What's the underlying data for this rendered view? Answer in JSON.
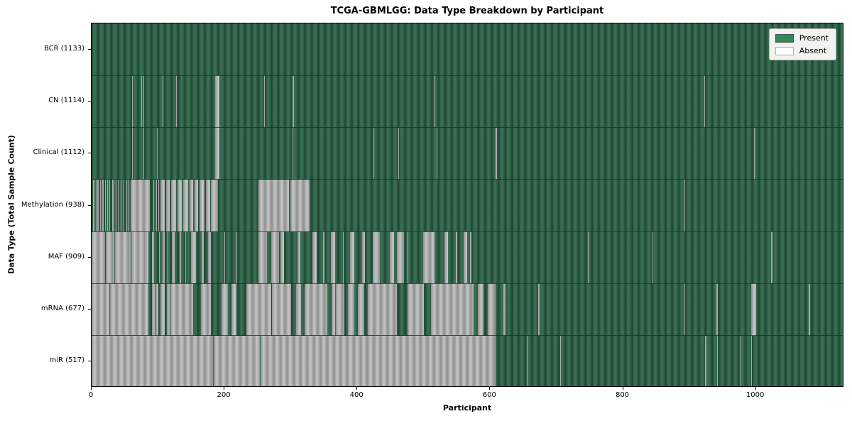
{
  "figure": {
    "title": "TCGA-GBMLGG: Data Type Breakdown by Participant",
    "xlabel": "Participant",
    "ylabel": "Data Type (Total Sample Count)"
  },
  "legend": {
    "items": [
      {
        "label": "Present",
        "color": "#2e8b57",
        "border": "#4d4d4d"
      },
      {
        "label": "Absent",
        "color": "#ffffff",
        "border": "#b0b0b0"
      }
    ],
    "background": "#f2f2ef",
    "border_color": "#b5b5b5"
  },
  "colors": {
    "present_fill": "#2e8b57",
    "absent_fill": "#ffffff",
    "plot_green_dark": "#1f4531",
    "plot_green_base": "#2f6147",
    "plot_green_light": "#3d7257",
    "plot_gray_dark": "#8f8f8f",
    "plot_gray_base": "#a9a9a9",
    "plot_gray_light": "#c6c6c6",
    "row_separator": "#16301f",
    "spine": "#000000"
  },
  "chart_data": {
    "type": "heatmap",
    "title": "TCGA-GBMLGG: Data Type Breakdown by Participant",
    "xlabel": "Participant",
    "ylabel": "Data Type (Total Sample Count)",
    "x_ticks": [
      0,
      200,
      400,
      600,
      800,
      1000
    ],
    "x_max": 1133,
    "legend_entries": [
      "Present",
      "Absent"
    ],
    "cell_states": {
      "present": "seagreen",
      "absent": "white"
    },
    "rows": [
      {
        "label": "BCR (1133)",
        "data_type": "BCR",
        "present_count": 1133,
        "absent_segments": []
      },
      {
        "label": "CN (1114)",
        "data_type": "CN",
        "present_count": 1114,
        "absent_segments": [
          [
            61,
            62
          ],
          [
            75,
            76
          ],
          [
            78,
            79
          ],
          [
            107,
            108
          ],
          [
            127,
            128
          ],
          [
            186,
            192
          ],
          [
            260,
            261
          ],
          [
            303,
            305
          ],
          [
            516,
            517
          ],
          [
            922,
            924
          ]
        ]
      },
      {
        "label": "Clinical (1112)",
        "data_type": "Clinical",
        "present_count": 1112,
        "absent_segments": [
          [
            61,
            62
          ],
          [
            78,
            79
          ],
          [
            98,
            99
          ],
          [
            186,
            192
          ],
          [
            303,
            304
          ],
          [
            424,
            425
          ],
          [
            462,
            463
          ],
          [
            519,
            520
          ],
          [
            608,
            610
          ],
          [
            997,
            998
          ]
        ]
      },
      {
        "label": "Methylation (938)",
        "data_type": "Methylation",
        "present_count": 938,
        "absent_segments": [
          [
            2,
            4
          ],
          [
            6,
            7
          ],
          [
            9,
            11
          ],
          [
            13,
            14
          ],
          [
            16,
            18
          ],
          [
            20,
            21
          ],
          [
            24,
            25
          ],
          [
            27,
            28
          ],
          [
            31,
            33
          ],
          [
            36,
            37
          ],
          [
            40,
            41
          ],
          [
            44,
            45
          ],
          [
            48,
            49
          ],
          [
            52,
            53
          ],
          [
            55,
            56
          ],
          [
            59,
            88
          ],
          [
            93,
            94
          ],
          [
            97,
            98
          ],
          [
            101,
            102
          ],
          [
            104,
            110
          ],
          [
            112,
            118
          ],
          [
            120,
            127
          ],
          [
            129,
            136
          ],
          [
            138,
            145
          ],
          [
            147,
            153
          ],
          [
            155,
            160
          ],
          [
            162,
            170
          ],
          [
            172,
            178
          ],
          [
            180,
            190
          ],
          [
            251,
            297
          ],
          [
            299,
            328
          ],
          [
            892,
            894
          ]
        ]
      },
      {
        "label": "MAF (909)",
        "data_type": "MAF",
        "present_count": 909,
        "absent_segments": [
          [
            0,
            20
          ],
          [
            21,
            34
          ],
          [
            35,
            59
          ],
          [
            60,
            85
          ],
          [
            91,
            94
          ],
          [
            102,
            103
          ],
          [
            107,
            110
          ],
          [
            114,
            115
          ],
          [
            121,
            125
          ],
          [
            132,
            135
          ],
          [
            141,
            142
          ],
          [
            150,
            157
          ],
          [
            166,
            169
          ],
          [
            175,
            180
          ],
          [
            200,
            201
          ],
          [
            218,
            219
          ],
          [
            251,
            264
          ],
          [
            270,
            282
          ],
          [
            284,
            290
          ],
          [
            310,
            314
          ],
          [
            332,
            339
          ],
          [
            348,
            351
          ],
          [
            360,
            367
          ],
          [
            378,
            379
          ],
          [
            389,
            396
          ],
          [
            407,
            411
          ],
          [
            423,
            434
          ],
          [
            449,
            455
          ],
          [
            460,
            470
          ],
          [
            476,
            477
          ],
          [
            499,
            516
          ],
          [
            531,
            537
          ],
          [
            548,
            550
          ],
          [
            560,
            565
          ],
          [
            570,
            572
          ],
          [
            747,
            748
          ],
          [
            844,
            845
          ],
          [
            1023,
            1025
          ]
        ]
      },
      {
        "label": "mRNA (677)",
        "data_type": "mRNA",
        "present_count": 677,
        "absent_segments": [
          [
            0,
            27
          ],
          [
            28,
            85
          ],
          [
            91,
            95
          ],
          [
            96,
            100
          ],
          [
            104,
            110
          ],
          [
            113,
            118
          ],
          [
            119,
            153
          ],
          [
            165,
            180
          ],
          [
            196,
            205
          ],
          [
            211,
            218
          ],
          [
            233,
            270
          ],
          [
            271,
            300
          ],
          [
            308,
            315
          ],
          [
            321,
            355
          ],
          [
            361,
            367
          ],
          [
            368,
            380
          ],
          [
            386,
            395
          ],
          [
            401,
            410
          ],
          [
            416,
            460
          ],
          [
            476,
            500
          ],
          [
            511,
            575
          ],
          [
            581,
            590
          ],
          [
            596,
            608
          ],
          [
            620,
            623
          ],
          [
            672,
            674
          ],
          [
            892,
            894
          ],
          [
            941,
            943
          ],
          [
            993,
            1000
          ],
          [
            1080,
            1082
          ]
        ]
      },
      {
        "label": "miR (517)",
        "data_type": "miR",
        "present_count": 517,
        "absent_segments": [
          [
            0,
            183
          ],
          [
            184,
            253
          ],
          [
            254,
            608
          ],
          [
            655,
            656
          ],
          [
            705,
            706
          ],
          [
            924,
            926
          ],
          [
            942,
            943
          ],
          [
            976,
            977
          ],
          [
            993,
            994
          ]
        ]
      }
    ]
  }
}
